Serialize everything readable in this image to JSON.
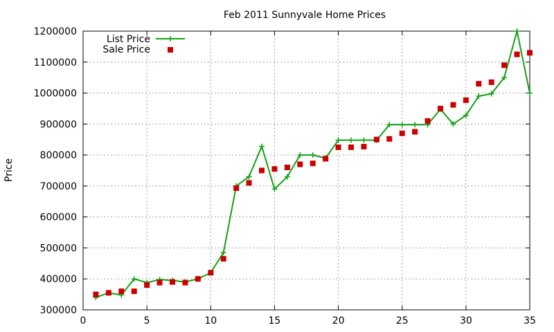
{
  "chart_data": {
    "type": "line",
    "title": "Feb 2011 Sunnyvale Home Prices",
    "xlabel": "",
    "ylabel": "Price",
    "xlim": [
      0,
      35
    ],
    "ylim": [
      300000,
      1200000
    ],
    "xticks": [
      0,
      5,
      10,
      15,
      20,
      25,
      30,
      35
    ],
    "yticks": [
      300000,
      400000,
      500000,
      600000,
      700000,
      800000,
      900000,
      1000000,
      1100000,
      1200000
    ],
    "grid": true,
    "legend_position": "top-left",
    "x": [
      1,
      2,
      3,
      4,
      5,
      6,
      7,
      8,
      9,
      10,
      11,
      12,
      13,
      14,
      15,
      16,
      17,
      18,
      19,
      20,
      21,
      22,
      23,
      24,
      25,
      26,
      27,
      28,
      29,
      30,
      31,
      32,
      33,
      34,
      35
    ],
    "series": [
      {
        "name": "List Price",
        "style": "line-plus",
        "color": "#11a011",
        "values": [
          340000,
          355000,
          348000,
          400000,
          388000,
          398000,
          395000,
          390000,
          400000,
          420000,
          485000,
          700000,
          730000,
          828000,
          690000,
          730000,
          800000,
          800000,
          790000,
          848000,
          848000,
          848000,
          848000,
          898000,
          898000,
          898000,
          898000,
          948000,
          900000,
          928000,
          990000,
          998000,
          1050000,
          1200000,
          1000000
        ]
      },
      {
        "name": "Sale Price",
        "style": "square-markers",
        "color": "#cc0000",
        "values": [
          350000,
          355000,
          360000,
          360000,
          380000,
          388000,
          390000,
          388000,
          400000,
          420000,
          465000,
          693000,
          710000,
          750000,
          755000,
          760000,
          770000,
          773000,
          788000,
          825000,
          825000,
          827000,
          850000,
          852000,
          870000,
          875000,
          910000,
          950000,
          962000,
          977000,
          1030000,
          1035000,
          1090000,
          1125000,
          1130000
        ]
      }
    ]
  }
}
